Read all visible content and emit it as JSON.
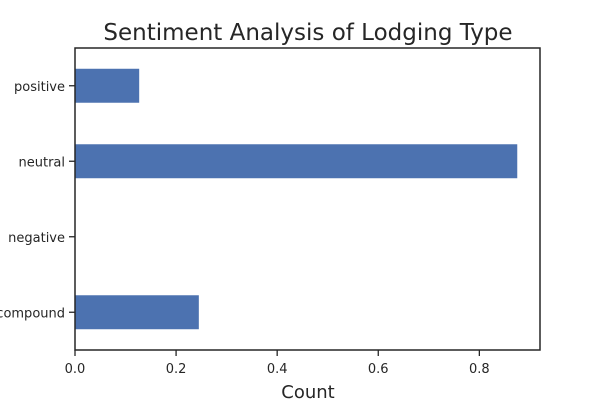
{
  "chart_data": {
    "type": "bar",
    "orientation": "horizontal",
    "title": "Sentiment Analysis of Lodging Type",
    "xlabel": "Count",
    "ylabel": "",
    "categories": [
      "compound",
      "negative",
      "neutral",
      "positive"
    ],
    "values": [
      0.245,
      0.0,
      0.875,
      0.127
    ],
    "xlim": [
      0,
      0.92
    ],
    "xticks": [
      "0.0",
      "0.2",
      "0.4",
      "0.6",
      "0.8"
    ],
    "grid": false,
    "bar_color": "#4c72b0"
  }
}
